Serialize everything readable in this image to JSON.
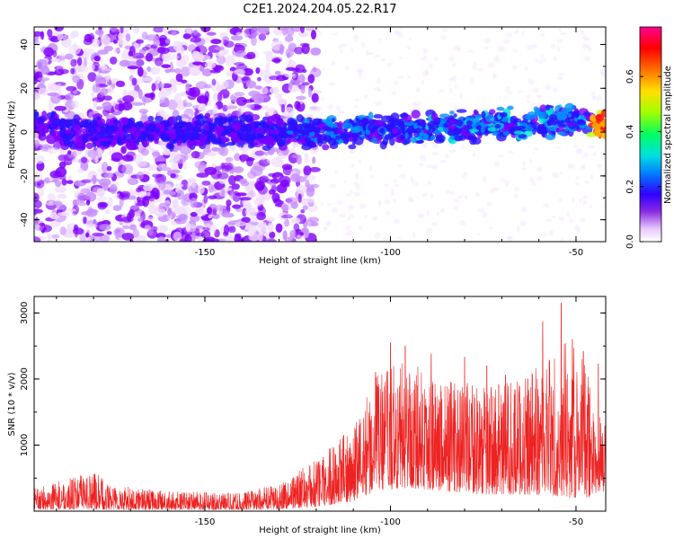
{
  "figure": {
    "title": "C2E1.2024.204.05.22.R17"
  },
  "chart_data": [
    {
      "type": "heatmap",
      "xlabel": "Height of straight line (km)",
      "ylabel": "Frequency (Hz)",
      "xlim": [
        -196,
        -42
      ],
      "ylim": [
        -50,
        48
      ],
      "xticks": [
        -150,
        -100,
        -50
      ],
      "yticks": [
        -40,
        -20,
        0,
        20,
        40
      ],
      "colorbar": {
        "label": "Normalized spectral amplitude",
        "range": [
          0.0,
          0.78
        ],
        "ticks": [
          0.0,
          0.2,
          0.4,
          0.6
        ],
        "colormap": "rainbow (white-violet-blue-cyan-green-yellow-red-magenta)"
      },
      "description_values": {
        "band_center_hz": [
          [
            -190,
            0
          ],
          [
            -150,
            0
          ],
          [
            -120,
            0
          ],
          [
            -100,
            1
          ],
          [
            -75,
            3
          ],
          [
            -50,
            5
          ],
          [
            -43,
            3
          ]
        ],
        "band_halfwidth_hz": 6,
        "scatter_region_x": [
          -196,
          -120
        ],
        "peak_amplitude_near_x": -45
      }
    },
    {
      "type": "line",
      "xlabel": "Height of straight line (km)",
      "ylabel": "SNR (10 * v/v)",
      "xlim": [
        -196,
        -42
      ],
      "ylim": [
        0,
        3250
      ],
      "xticks": [
        -150,
        -100,
        -50
      ],
      "yticks": [
        1000,
        2000,
        3000
      ],
      "color": "#ee2222",
      "envelope": [
        {
          "x": -196,
          "low": 20,
          "high": 350
        },
        {
          "x": -180,
          "low": 30,
          "high": 600
        },
        {
          "x": -175,
          "low": 20,
          "high": 400
        },
        {
          "x": -160,
          "low": 20,
          "high": 300
        },
        {
          "x": -140,
          "low": 20,
          "high": 280
        },
        {
          "x": -130,
          "low": 30,
          "high": 420
        },
        {
          "x": -120,
          "low": 60,
          "high": 800
        },
        {
          "x": -110,
          "low": 150,
          "high": 1300
        },
        {
          "x": -104,
          "low": 300,
          "high": 2100
        },
        {
          "x": -95,
          "low": 350,
          "high": 2300
        },
        {
          "x": -85,
          "low": 300,
          "high": 2000
        },
        {
          "x": -75,
          "low": 250,
          "high": 1900
        },
        {
          "x": -65,
          "low": 250,
          "high": 2000
        },
        {
          "x": -58,
          "low": 250,
          "high": 2400
        },
        {
          "x": -52,
          "low": 200,
          "high": 2600
        },
        {
          "x": -47,
          "low": 200,
          "high": 2200
        },
        {
          "x": -42,
          "low": 300,
          "high": 1400
        }
      ],
      "spikes": [
        {
          "x": -104,
          "y": 2100
        },
        {
          "x": -100,
          "y": 2550
        },
        {
          "x": -96,
          "y": 2500
        },
        {
          "x": -89,
          "y": 2380
        },
        {
          "x": -80,
          "y": 2330
        },
        {
          "x": -74,
          "y": 2200
        },
        {
          "x": -69,
          "y": 2060
        },
        {
          "x": -63,
          "y": 2000
        },
        {
          "x": -59,
          "y": 2870
        },
        {
          "x": -54,
          "y": 3150
        },
        {
          "x": -51,
          "y": 2600
        },
        {
          "x": -48,
          "y": 2420
        },
        {
          "x": -44,
          "y": 2230
        }
      ]
    }
  ]
}
